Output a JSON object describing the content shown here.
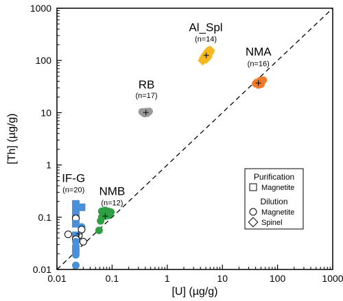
{
  "chart_data": {
    "type": "scatter",
    "xscale": "log",
    "yscale": "log",
    "xlim": [
      0.01,
      1000
    ],
    "ylim": [
      0.01,
      1000
    ],
    "xlabel": "[U] (µg/g)",
    "ylabel": "[Th] (µg/g)",
    "x_ticks": [
      "0.01",
      "0.1",
      "1",
      "10",
      "100",
      "1000"
    ],
    "y_ticks": [
      "0.01",
      "0.1",
      "1",
      "10",
      "100",
      "1000"
    ],
    "reference_line": {
      "style": "dashed",
      "color": "#000000",
      "points": [
        [
          0.01,
          0.01
        ],
        [
          1000,
          1000
        ]
      ]
    },
    "groups": [
      {
        "label": "IF-G",
        "n_label": "(n=20)",
        "color": "#4a90d9",
        "label_at": [
          0.02,
          0.47
        ],
        "n_at": [
          0.02,
          0.3
        ],
        "points": [
          {
            "x": 0.022,
            "y": 0.18,
            "marker": "square",
            "fill": true
          },
          {
            "x": 0.022,
            "y": 0.15,
            "marker": "square",
            "fill": true
          },
          {
            "x": 0.028,
            "y": 0.155,
            "marker": "square",
            "fill": true
          },
          {
            "x": 0.022,
            "y": 0.115,
            "marker": "square",
            "fill": true
          },
          {
            "x": 0.022,
            "y": 0.095,
            "marker": "circle",
            "fill": false
          },
          {
            "x": 0.022,
            "y": 0.075,
            "marker": "square",
            "fill": true
          },
          {
            "x": 0.028,
            "y": 0.065,
            "marker": "circle",
            "fill": true
          },
          {
            "x": 0.028,
            "y": 0.058,
            "marker": "circle",
            "fill": false
          },
          {
            "x": 0.016,
            "y": 0.047,
            "marker": "circle",
            "fill": false
          },
          {
            "x": 0.025,
            "y": 0.045,
            "marker": "circle",
            "fill": false
          },
          {
            "x": 0.022,
            "y": 0.045,
            "marker": "square",
            "fill": true
          },
          {
            "x": 0.022,
            "y": 0.038,
            "marker": "circle",
            "fill": false
          },
          {
            "x": 0.022,
            "y": 0.034,
            "marker": "circle",
            "fill": true
          },
          {
            "x": 0.03,
            "y": 0.034,
            "marker": "circle",
            "fill": false
          },
          {
            "x": 0.022,
            "y": 0.028,
            "marker": "circle",
            "fill": true
          },
          {
            "x": 0.022,
            "y": 0.024,
            "marker": "square",
            "fill": true
          },
          {
            "x": 0.022,
            "y": 0.019,
            "marker": "circle",
            "fill": true
          },
          {
            "x": 0.022,
            "y": 0.012,
            "marker": "circle",
            "fill": true
          }
        ],
        "mean": {
          "x": 0.025,
          "y": 0.048
        }
      },
      {
        "label": "NMB",
        "n_label": "(n=12)",
        "color": "#2ea043",
        "label_at": [
          0.1,
          0.265
        ],
        "n_at": [
          0.1,
          0.168
        ],
        "points": [
          {
            "x": 0.065,
            "y": 0.13,
            "marker": "circle",
            "fill": true
          },
          {
            "x": 0.075,
            "y": 0.135,
            "marker": "circle",
            "fill": true
          },
          {
            "x": 0.085,
            "y": 0.13,
            "marker": "circle",
            "fill": true
          },
          {
            "x": 0.095,
            "y": 0.125,
            "marker": "circle",
            "fill": true
          },
          {
            "x": 0.07,
            "y": 0.115,
            "marker": "circle",
            "fill": true
          },
          {
            "x": 0.08,
            "y": 0.12,
            "marker": "circle",
            "fill": true
          },
          {
            "x": 0.09,
            "y": 0.115,
            "marker": "circle",
            "fill": true
          },
          {
            "x": 0.065,
            "y": 0.1,
            "marker": "circle",
            "fill": true
          },
          {
            "x": 0.075,
            "y": 0.105,
            "marker": "circle",
            "fill": true
          },
          {
            "x": 0.062,
            "y": 0.085,
            "marker": "circle",
            "fill": true
          },
          {
            "x": 0.058,
            "y": 0.056,
            "marker": "circle",
            "fill": true
          },
          {
            "x": 0.085,
            "y": 0.108,
            "marker": "circle",
            "fill": true
          }
        ],
        "mean": {
          "x": 0.075,
          "y": 0.105
        }
      },
      {
        "label": "RB",
        "n_label": "(n=17)",
        "color": "#999999",
        "label_at": [
          0.42,
          29
        ],
        "n_at": [
          0.42,
          19
        ],
        "points": [
          {
            "x": 0.37,
            "y": 10,
            "marker": "circle",
            "fill": true
          },
          {
            "x": 0.41,
            "y": 10.5,
            "marker": "circle",
            "fill": true
          },
          {
            "x": 0.45,
            "y": 10.2,
            "marker": "circle",
            "fill": true
          },
          {
            "x": 0.39,
            "y": 9.6,
            "marker": "circle",
            "fill": true
          },
          {
            "x": 0.43,
            "y": 9.8,
            "marker": "circle",
            "fill": true
          },
          {
            "x": 0.47,
            "y": 10.6,
            "marker": "circle",
            "fill": true
          },
          {
            "x": 0.35,
            "y": 10.4,
            "marker": "circle",
            "fill": true
          }
        ],
        "mean": {
          "x": 0.41,
          "y": 10.1
        }
      },
      {
        "label": "Al_Spl",
        "n_label": "(n=14)",
        "color": "#f5b820",
        "label_at": [
          5,
          365
        ],
        "n_at": [
          5,
          230
        ],
        "points": [
          {
            "x": 5.5,
            "y": 150,
            "marker": "diamond",
            "fill": true
          },
          {
            "x": 5.2,
            "y": 135,
            "marker": "diamond",
            "fill": true
          },
          {
            "x": 4.9,
            "y": 125,
            "marker": "diamond",
            "fill": true
          },
          {
            "x": 5.8,
            "y": 140,
            "marker": "diamond",
            "fill": true
          },
          {
            "x": 4.6,
            "y": 112,
            "marker": "diamond",
            "fill": true
          },
          {
            "x": 5.1,
            "y": 108,
            "marker": "diamond",
            "fill": true
          },
          {
            "x": 4.4,
            "y": 100,
            "marker": "diamond",
            "fill": true
          },
          {
            "x": 6.0,
            "y": 155,
            "marker": "diamond",
            "fill": true
          },
          {
            "x": 5.4,
            "y": 118,
            "marker": "diamond",
            "fill": true
          }
        ],
        "mean": {
          "x": 5.1,
          "y": 125
        }
      },
      {
        "label": "NMA",
        "n_label": "(n=16)",
        "color": "#f07a2c",
        "label_at": [
          45,
          125
        ],
        "n_at": [
          45,
          78
        ],
        "points": [
          {
            "x": 42,
            "y": 38,
            "marker": "circle",
            "fill": true
          },
          {
            "x": 48,
            "y": 41,
            "marker": "circle",
            "fill": true
          },
          {
            "x": 52,
            "y": 39,
            "marker": "circle",
            "fill": true
          },
          {
            "x": 45,
            "y": 34,
            "marker": "circle",
            "fill": true
          },
          {
            "x": 50,
            "y": 35,
            "marker": "circle",
            "fill": true
          },
          {
            "x": 40,
            "y": 36,
            "marker": "circle",
            "fill": true
          },
          {
            "x": 55,
            "y": 42,
            "marker": "circle",
            "fill": true
          }
        ],
        "mean": {
          "x": 45,
          "y": 37
        }
      }
    ],
    "legend": {
      "position": "bottom-right",
      "sections": [
        {
          "title": "Purification",
          "items": [
            {
              "marker": "square",
              "label": "Magnetite"
            }
          ]
        },
        {
          "title": "Dilution",
          "items": [
            {
              "marker": "circle",
              "label": "Magnetite"
            },
            {
              "marker": "diamond",
              "label": "Spinel"
            }
          ]
        }
      ]
    }
  }
}
